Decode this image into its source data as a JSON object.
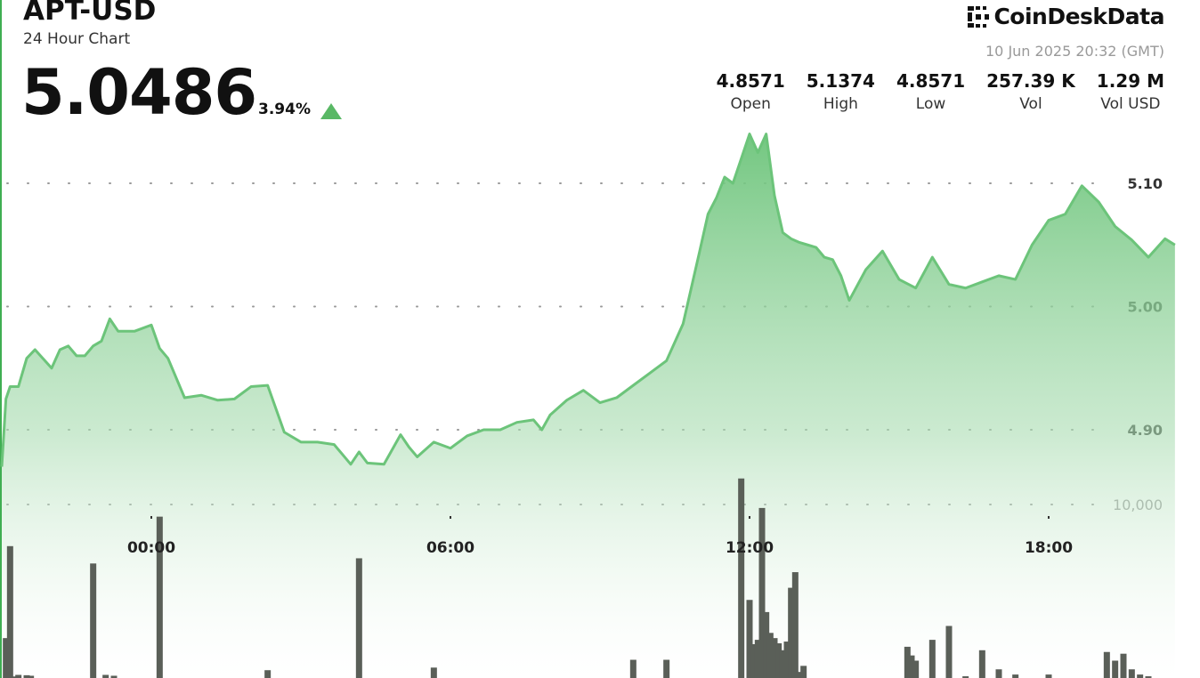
{
  "header": {
    "symbol": "APT-USD",
    "subtitle": "24 Hour Chart",
    "price": "5.0486",
    "change": "3.94%",
    "direction": "up"
  },
  "brand": {
    "name": "CoinDeskData",
    "icon": "coindesk-logo-icon"
  },
  "timestamp": "10 Jun 2025 20:32 (GMT)",
  "stats": [
    {
      "value": "4.8571",
      "label": "Open"
    },
    {
      "value": "5.1374",
      "label": "High"
    },
    {
      "value": "4.8571",
      "label": "Low"
    },
    {
      "value": "257.39 K",
      "label": "Vol"
    },
    {
      "value": "1.29 M",
      "label": "Vol USD"
    }
  ],
  "colors": {
    "accent": "#3fae52",
    "line": "#6cc47a",
    "volume": "#5a5f58",
    "up": "#59b865"
  },
  "chart_data": {
    "type": "area",
    "price_axis": {
      "ticks": [
        4.9,
        5.0,
        5.1
      ],
      "tick_labels": [
        "4.90",
        "5.00",
        "5.10"
      ],
      "range": [
        4.8,
        5.175
      ]
    },
    "volume_axis": {
      "ticks": [
        10000
      ],
      "tick_labels": [
        "10,000"
      ],
      "range": [
        0,
        14000
      ]
    },
    "time_axis": {
      "range": [
        "21:00",
        "21:00"
      ],
      "ticks": [
        "00:00",
        "06:00",
        "12:00",
        "18:00"
      ]
    },
    "grid": true,
    "price_series": {
      "x": [
        "21:00",
        "21:05",
        "21:10",
        "21:20",
        "21:30",
        "21:40",
        "22:00",
        "22:10",
        "22:20",
        "22:30",
        "22:40",
        "22:50",
        "23:00",
        "23:10",
        "23:20",
        "23:40",
        "00:00",
        "00:10",
        "00:20",
        "00:40",
        "01:00",
        "01:20",
        "01:40",
        "02:00",
        "02:20",
        "02:40",
        "03:00",
        "03:20",
        "03:40",
        "04:00",
        "04:10",
        "04:20",
        "04:40",
        "05:00",
        "05:10",
        "05:20",
        "05:40",
        "06:00",
        "06:20",
        "06:40",
        "07:00",
        "07:20",
        "07:40",
        "07:50",
        "08:00",
        "08:20",
        "08:40",
        "09:00",
        "09:20",
        "09:40",
        "10:00",
        "10:20",
        "10:40",
        "11:00",
        "11:10",
        "11:20",
        "11:30",
        "11:40",
        "11:50",
        "12:00",
        "12:10",
        "12:20",
        "12:30",
        "12:40",
        "12:50",
        "13:00",
        "13:10",
        "13:20",
        "13:30",
        "13:40",
        "13:50",
        "14:00",
        "14:20",
        "14:40",
        "15:00",
        "15:20",
        "15:40",
        "16:00",
        "16:20",
        "16:40",
        "17:00",
        "17:20",
        "17:40",
        "18:00",
        "18:20",
        "18:40",
        "19:00",
        "19:20",
        "19:40",
        "20:00",
        "20:20",
        "20:32"
      ],
      "y": [
        4.87,
        4.925,
        4.935,
        4.935,
        4.958,
        4.965,
        4.95,
        4.965,
        4.968,
        4.96,
        4.96,
        4.968,
        4.972,
        4.99,
        4.98,
        4.98,
        4.985,
        4.966,
        4.958,
        4.926,
        4.928,
        4.924,
        4.925,
        4.935,
        4.936,
        4.898,
        4.89,
        4.89,
        4.888,
        4.872,
        4.882,
        4.873,
        4.872,
        4.896,
        4.886,
        4.878,
        4.89,
        4.885,
        4.895,
        4.9,
        4.9,
        4.906,
        4.908,
        4.9,
        4.912,
        4.924,
        4.932,
        4.922,
        4.926,
        4.936,
        4.946,
        4.956,
        4.986,
        5.045,
        5.075,
        5.088,
        5.105,
        5.1,
        5.12,
        5.14,
        5.125,
        5.14,
        5.09,
        5.06,
        5.055,
        5.052,
        5.05,
        5.048,
        5.04,
        5.038,
        5.025,
        5.005,
        5.03,
        5.045,
        5.022,
        5.015,
        5.04,
        5.018,
        5.015,
        5.02,
        5.025,
        5.022,
        5.05,
        5.07,
        5.075,
        5.098,
        5.085,
        5.065,
        5.054,
        5.04,
        5.055,
        5.05
      ]
    },
    "volume_series": {
      "x": [
        "21:05",
        "21:10",
        "21:15",
        "21:20",
        "21:30",
        "21:35",
        "22:50",
        "23:05",
        "23:15",
        "00:10",
        "02:20",
        "04:10",
        "05:40",
        "09:40",
        "10:20",
        "11:50",
        "12:00",
        "12:05",
        "12:10",
        "12:15",
        "12:20",
        "12:25",
        "12:30",
        "12:35",
        "12:40",
        "12:45",
        "12:50",
        "12:55",
        "13:00",
        "13:05",
        "15:10",
        "15:15",
        "15:20",
        "15:40",
        "16:00",
        "16:20",
        "16:40",
        "17:00",
        "17:20",
        "18:00",
        "19:10",
        "19:20",
        "19:30",
        "19:40",
        "19:50",
        "20:00"
      ],
      "values": [
        2300,
        7600,
        90,
        180,
        160,
        130,
        6600,
        180,
        130,
        9300,
        450,
        6900,
        600,
        1050,
        1050,
        11500,
        4500,
        1950,
        2200,
        9800,
        3800,
        2600,
        2300,
        2000,
        1600,
        2100,
        5200,
        6100,
        350,
        700,
        1800,
        1300,
        1000,
        2200,
        3000,
        100,
        1600,
        500,
        200,
        200,
        1500,
        1000,
        1400,
        500,
        200,
        100
      ]
    }
  }
}
